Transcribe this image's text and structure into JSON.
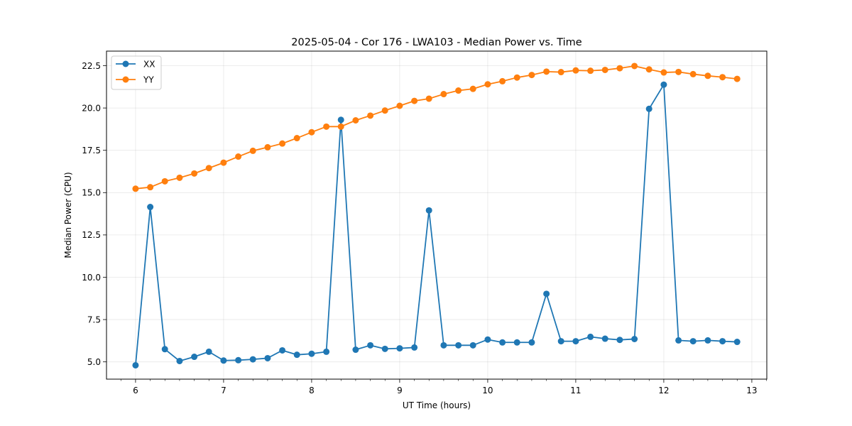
{
  "chart_data": {
    "type": "line",
    "title": "2025-05-04 - Cor 176 - LWA103 - Median Power vs. Time",
    "xlabel": "UT Time (hours)",
    "ylabel": "Median Power (CPU)",
    "xlim": [
      5.67,
      13.17
    ],
    "ylim": [
      3.98,
      23.36
    ],
    "xticks": [
      6,
      7,
      8,
      9,
      10,
      11,
      12,
      13
    ],
    "yticks": [
      5.0,
      7.5,
      10.0,
      12.5,
      15.0,
      17.5,
      20.0,
      22.5
    ],
    "ytick_labels": [
      "5.0",
      "7.5",
      "10.0",
      "12.5",
      "15.0",
      "17.5",
      "20.0",
      "22.5"
    ],
    "grid": true,
    "legend": "upper-left",
    "x": [
      6.0,
      6.167,
      6.333,
      6.5,
      6.667,
      6.833,
      7.0,
      7.167,
      7.333,
      7.5,
      7.667,
      7.833,
      8.0,
      8.167,
      8.333,
      8.5,
      8.667,
      8.833,
      9.0,
      9.167,
      9.333,
      9.5,
      9.667,
      9.833,
      10.0,
      10.167,
      10.333,
      10.5,
      10.667,
      10.833,
      11.0,
      11.167,
      11.333,
      11.5,
      11.667,
      11.833,
      12.0,
      12.167,
      12.333,
      12.5,
      12.667,
      12.833
    ],
    "series": [
      {
        "name": "XX",
        "color": "#1f77b4",
        "values": [
          4.8,
          14.15,
          5.75,
          5.05,
          5.3,
          5.6,
          5.08,
          5.1,
          5.15,
          5.22,
          5.68,
          5.42,
          5.48,
          5.6,
          19.3,
          5.72,
          5.98,
          5.77,
          5.8,
          5.85,
          13.95,
          5.98,
          5.98,
          5.98,
          6.32,
          6.15,
          6.15,
          6.15,
          9.02,
          6.22,
          6.22,
          6.48,
          6.37,
          6.3,
          6.35,
          19.95,
          21.38,
          6.27,
          6.22,
          6.27,
          6.22,
          6.18
        ]
      },
      {
        "name": "YY",
        "color": "#ff7f0e",
        "values": [
          15.23,
          15.32,
          15.67,
          15.88,
          16.13,
          16.45,
          16.77,
          17.13,
          17.47,
          17.68,
          17.9,
          18.22,
          18.57,
          18.9,
          18.9,
          19.27,
          19.55,
          19.85,
          20.13,
          20.42,
          20.55,
          20.82,
          21.03,
          21.13,
          21.4,
          21.58,
          21.8,
          21.95,
          22.15,
          22.12,
          22.22,
          22.2,
          22.25,
          22.35,
          22.48,
          22.28,
          22.1,
          22.13,
          22.0,
          21.9,
          21.82,
          21.72
        ]
      }
    ]
  }
}
